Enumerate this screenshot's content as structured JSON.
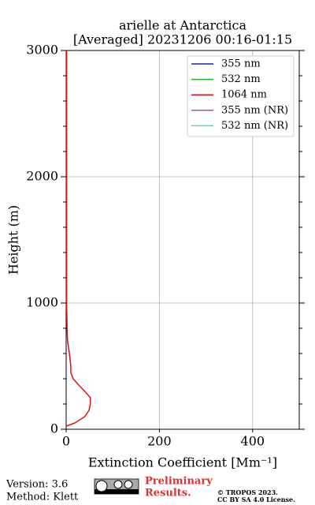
{
  "chart_data": {
    "type": "line",
    "title": [
      "arielle at Antarctica",
      "[Averaged] 20231206 00:16-01:15"
    ],
    "x_label": "Extinction Coefficient [Mm⁻¹]",
    "y_label": "Height (m)",
    "y": [
      25,
      50,
      100,
      150,
      200,
      250,
      300,
      350,
      400,
      450,
      500,
      600,
      700,
      800,
      1000,
      1500,
      2000,
      2500,
      3000
    ],
    "series": [
      {
        "name": "355 nm",
        "color": "#1f1fd0",
        "values": [
          null,
          null,
          null,
          null,
          null,
          null,
          null,
          null,
          null,
          null,
          null,
          null,
          null,
          null,
          null,
          null,
          null,
          null,
          null
        ]
      },
      {
        "name": "532 nm",
        "color": "#22b022",
        "values": [
          null,
          null,
          null,
          null,
          null,
          null,
          null,
          null,
          null,
          null,
          null,
          null,
          null,
          null,
          null,
          null,
          null,
          null,
          null
        ]
      },
      {
        "name": "1064 nm",
        "color": "#dd1111",
        "values": [
          0,
          19,
          40,
          49,
          52,
          52,
          40,
          27,
          15,
          10,
          10,
          7,
          3,
          2,
          1,
          1,
          1,
          1,
          1
        ]
      },
      {
        "name": "355 nm (NR)",
        "color": "#9b4fe0",
        "values": [
          null,
          null,
          null,
          null,
          null,
          null,
          null,
          null,
          null,
          null,
          null,
          null,
          null,
          null,
          null,
          null,
          null,
          null,
          null
        ]
      },
      {
        "name": "532 nm (NR)",
        "color": "#40e0d0",
        "values": [
          null,
          null,
          null,
          null,
          null,
          null,
          null,
          null,
          null,
          null,
          null,
          null,
          null,
          null,
          null,
          null,
          null,
          null,
          null
        ]
      }
    ],
    "xlim": [
      0,
      500
    ],
    "xticks": [
      0,
      200,
      400
    ],
    "ylim": [
      0,
      3000
    ],
    "yticks": [
      0,
      1000,
      2000,
      3000
    ],
    "grid": true,
    "legend": "upper right"
  },
  "footer": {
    "version": "Version: 3.6",
    "method": "Method: Klett",
    "notice": [
      "Preliminary",
      "Results."
    ],
    "copyright": [
      "© TROPOS 2023.",
      "CC BY SA 4.0 License."
    ]
  }
}
